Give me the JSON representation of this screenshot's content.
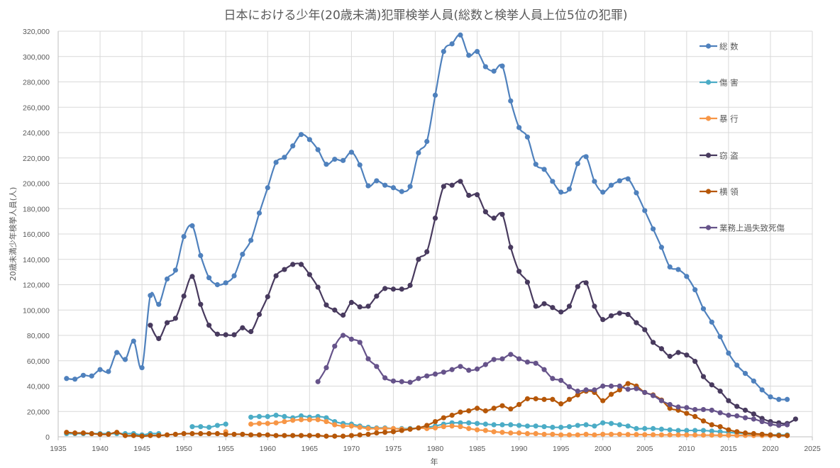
{
  "chart_data": {
    "type": "line",
    "title": "日本における少年(20歳未満)犯罪検挙人員(総数と検挙人員上位5位の犯罪)",
    "xlabel": "年",
    "ylabel": "20歳未満少年検挙人員(人)",
    "xlim": [
      1935,
      2025
    ],
    "ylim": [
      0,
      320000
    ],
    "x_ticks": [
      1935,
      1940,
      1945,
      1950,
      1955,
      1960,
      1965,
      1970,
      1975,
      1980,
      1985,
      1990,
      1995,
      2000,
      2005,
      2010,
      2015,
      2020,
      2025
    ],
    "y_ticks": [
      0,
      20000,
      40000,
      60000,
      80000,
      100000,
      120000,
      140000,
      160000,
      180000,
      200000,
      220000,
      240000,
      260000,
      280000,
      300000,
      320000
    ],
    "y_tick_labels": [
      "0",
      "20,000",
      "40,000",
      "60,000",
      "80,000",
      "100,000",
      "120,000",
      "140,000",
      "160,000",
      "180,000",
      "200,000",
      "220,000",
      "240,000",
      "260,000",
      "280,000",
      "300,000",
      "320,000"
    ],
    "grid": true,
    "legend_position": "right",
    "series": [
      {
        "name": "総 数",
        "color": "#4f81bd",
        "start_year": 1936,
        "values": [
          46000,
          45500,
          48500,
          48000,
          53000,
          51500,
          66500,
          61000,
          75500,
          54500,
          111500,
          104500,
          124500,
          131500,
          158000,
          166500,
          143000,
          125500,
          120000,
          121500,
          127000,
          144000,
          155000,
          176500,
          196500,
          216500,
          220500,
          229500,
          238500,
          234500,
          226500,
          215000,
          219000,
          218000,
          224500,
          214500,
          198000,
          202000,
          198500,
          196500,
          193500,
          197500,
          224000,
          233000,
          269500,
          304000,
          310000,
          317000,
          301000,
          304000,
          292000,
          288500,
          292500,
          265000,
          244000,
          236500,
          215000,
          211000,
          201500,
          193000,
          195500,
          215500,
          221000,
          201500,
          193000,
          198500,
          202000,
          203500,
          192500,
          178500,
          164000,
          149500,
          134000,
          132000,
          126500,
          116000,
          101000,
          90500,
          79000,
          66000,
          56500,
          50000,
          44000,
          37000,
          31500,
          29500,
          29500
        ]
      },
      {
        "name": "傷 害",
        "color": "#4bacc6",
        "start_year": 1936,
        "values": [
          2500,
          2500,
          2500,
          2500,
          2500,
          2500,
          2500,
          2500,
          2500,
          1500,
          2500,
          2500,
          null,
          null,
          null,
          8000,
          8000,
          7500,
          9000,
          10000,
          null,
          null,
          15500,
          16000,
          16000,
          17000,
          16000,
          15000,
          16500,
          15500,
          16000,
          15000,
          12000,
          10500,
          10000,
          8500,
          7500,
          7000,
          7000,
          6500,
          6500,
          6500,
          7000,
          7500,
          8500,
          10000,
          11000,
          11000,
          11000,
          10500,
          10000,
          9500,
          9500,
          9500,
          9000,
          8500,
          8500,
          8000,
          7500,
          7500,
          8000,
          9000,
          9500,
          8500,
          11000,
          10500,
          9500,
          8500,
          6500,
          6500,
          6500,
          6000,
          5500,
          5000,
          5000,
          5000,
          5000,
          4500,
          4000,
          3500,
          3000,
          2500,
          2000,
          2000,
          1500,
          1500,
          1500
        ]
      },
      {
        "name": "暴 行",
        "color": "#f79646",
        "start_year": 1955,
        "values": [
          4000,
          null,
          null,
          10000,
          10500,
          10500,
          11000,
          12000,
          13000,
          13500,
          13500,
          13500,
          12000,
          9500,
          8500,
          8500,
          7500,
          6500,
          6500,
          6500,
          6500,
          6000,
          6000,
          7000,
          6500,
          7000,
          8000,
          8500,
          8000,
          6500,
          5500,
          5000,
          4000,
          3500,
          3000,
          3000,
          2500,
          2500,
          2000,
          2000,
          1500,
          1500,
          1500,
          2000,
          1500,
          2000,
          2000,
          2000,
          1800,
          1800,
          1700,
          1600,
          1500,
          1500,
          1500,
          1500,
          1400,
          1300,
          1300,
          1200,
          1200,
          1100,
          1100,
          1000,
          1000,
          1000,
          1000,
          1000
        ]
      },
      {
        "name": "窃 盗",
        "color": "#483a5e",
        "start_year": 1946,
        "values": [
          88000,
          77500,
          90000,
          93500,
          111000,
          126500,
          104500,
          88000,
          81000,
          80500,
          80500,
          86000,
          83000,
          96500,
          110500,
          127000,
          132000,
          136000,
          136000,
          128000,
          118000,
          104000,
          100000,
          96000,
          106000,
          102500,
          103000,
          111000,
          117000,
          116500,
          116500,
          119500,
          140000,
          146000,
          172500,
          197500,
          198500,
          201500,
          190500,
          191000,
          177500,
          172500,
          175500,
          149500,
          130500,
          122000,
          103000,
          105000,
          102000,
          98500,
          103000,
          118500,
          121500,
          103000,
          92500,
          95500,
          97500,
          96500,
          90000,
          84500,
          74500,
          69500,
          63500,
          66500,
          64500,
          59500,
          47500,
          41000,
          36000,
          28500,
          24000,
          21000,
          18000,
          14500,
          12000,
          11000,
          10500,
          14000
        ]
      },
      {
        "name": "横 領",
        "color": "#b65708",
        "start_year": 1936,
        "values": [
          3500,
          3000,
          3000,
          2500,
          2000,
          2000,
          3500,
          1000,
          1000,
          500,
          1000,
          1000,
          1500,
          2000,
          2500,
          2500,
          2500,
          2500,
          2500,
          2000,
          2000,
          2000,
          1500,
          1500,
          1500,
          1000,
          1000,
          1000,
          1000,
          1000,
          1000,
          500,
          500,
          500,
          1000,
          1500,
          2000,
          3000,
          3500,
          4000,
          5000,
          6000,
          7000,
          9000,
          12000,
          15000,
          17000,
          19500,
          20500,
          22500,
          20500,
          22500,
          24500,
          22000,
          25500,
          30000,
          30000,
          29500,
          29500,
          26000,
          29500,
          33000,
          36000,
          35000,
          28500,
          33500,
          37000,
          42000,
          40000,
          35000,
          33000,
          29000,
          22500,
          21000,
          18500,
          16000,
          12500,
          9500,
          8000,
          5500,
          4000,
          3000,
          2500,
          2000,
          1500,
          1000,
          1000
        ]
      },
      {
        "name": "業務上過失致死傷",
        "color": "#66538a",
        "start_year": 1966,
        "values": [
          43500,
          54500,
          71500,
          80000,
          77000,
          74500,
          61500,
          55500,
          46500,
          44000,
          43500,
          43000,
          46000,
          48000,
          49500,
          51000,
          53000,
          55500,
          52500,
          53500,
          57000,
          61000,
          61500,
          65000,
          61500,
          59000,
          58000,
          53000,
          46000,
          44500,
          39500,
          36000,
          37000,
          37000,
          40000,
          40000,
          40000,
          37500,
          38000,
          35000,
          32500,
          28500,
          25500,
          23500,
          23000,
          21500,
          21500,
          21000,
          19000,
          17000,
          16500,
          15000,
          14000,
          12000,
          10000,
          9000,
          9500
        ]
      }
    ]
  }
}
